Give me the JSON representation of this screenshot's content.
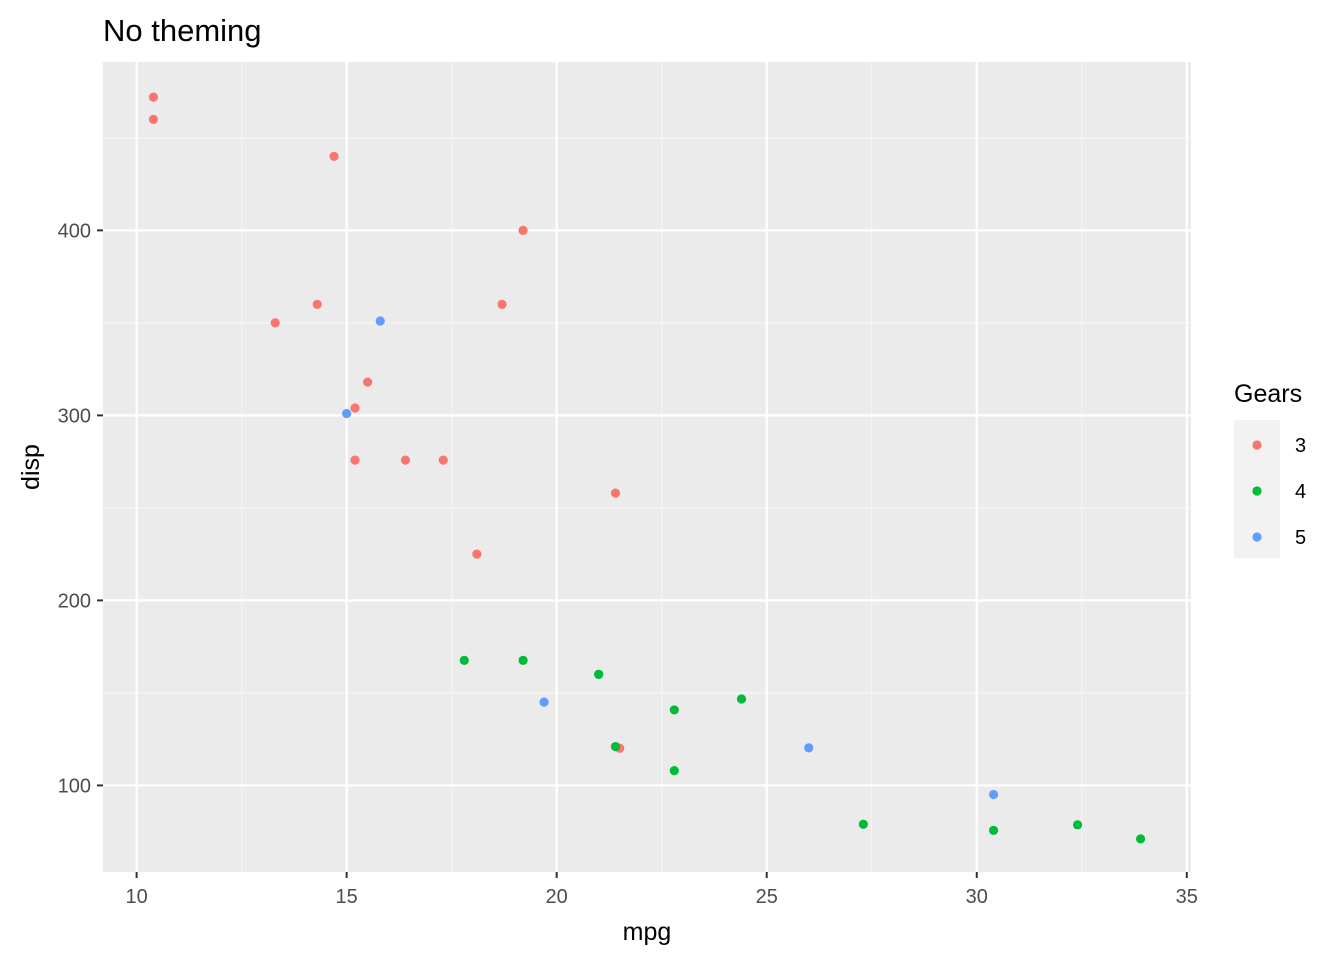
{
  "chart_data": {
    "type": "scatter",
    "title": "No theming",
    "xlabel": "mpg",
    "ylabel": "disp",
    "xlim": [
      9.2,
      35.1
    ],
    "ylim": [
      53.2,
      491.0
    ],
    "xticks": [
      10,
      15,
      20,
      25,
      30,
      35
    ],
    "yticks": [
      100,
      200,
      300,
      400
    ],
    "grid": true,
    "legend": {
      "title": "Gears",
      "placement": "right",
      "entries": [
        {
          "label": "3",
          "color": "#F8766D"
        },
        {
          "label": "4",
          "color": "#00BA38"
        },
        {
          "label": "5",
          "color": "#619CFF"
        }
      ]
    },
    "series": [
      {
        "name": "3",
        "color": "#F8766D",
        "points": [
          [
            21.4,
            258
          ],
          [
            18.7,
            360
          ],
          [
            18.1,
            225
          ],
          [
            14.3,
            360
          ],
          [
            16.4,
            275.8
          ],
          [
            17.3,
            275.8
          ],
          [
            15.2,
            275.8
          ],
          [
            10.4,
            472
          ],
          [
            10.4,
            460
          ],
          [
            14.7,
            440
          ],
          [
            21.5,
            120.1
          ],
          [
            15.5,
            318
          ],
          [
            15.2,
            304
          ],
          [
            13.3,
            350
          ],
          [
            19.2,
            400
          ]
        ]
      },
      {
        "name": "4",
        "color": "#00BA38",
        "points": [
          [
            21.0,
            160
          ],
          [
            21.0,
            160
          ],
          [
            22.8,
            108
          ],
          [
            24.4,
            146.7
          ],
          [
            22.8,
            140.8
          ],
          [
            19.2,
            167.6
          ],
          [
            17.8,
            167.6
          ],
          [
            32.4,
            78.7
          ],
          [
            30.4,
            75.7
          ],
          [
            33.9,
            71.1
          ],
          [
            27.3,
            79
          ],
          [
            21.4,
            121
          ]
        ]
      },
      {
        "name": "5",
        "color": "#619CFF",
        "points": [
          [
            26.0,
            120.3
          ],
          [
            30.4,
            95.1
          ],
          [
            15.8,
            351
          ],
          [
            19.7,
            145
          ],
          [
            15.0,
            301
          ]
        ]
      }
    ]
  }
}
